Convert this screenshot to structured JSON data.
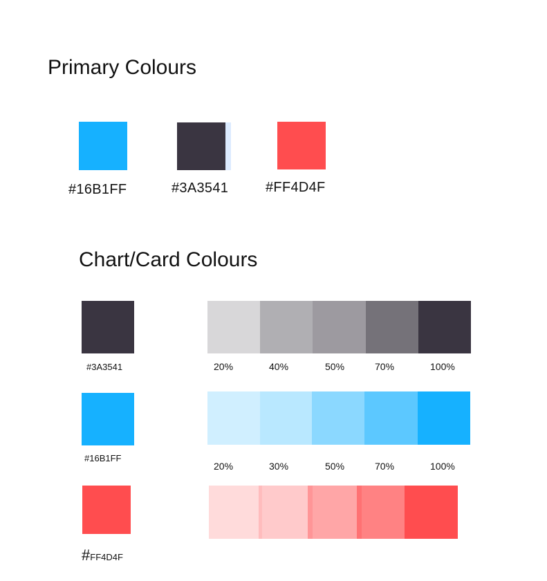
{
  "primary": {
    "title": "Primary Colours",
    "swatches": [
      {
        "hex": "#16B1FF",
        "color": "#16B1FF"
      },
      {
        "hex": "#3A3541",
        "color": "#3A3541"
      },
      {
        "hex": "#FF4D4F",
        "color": "#FF4D4F"
      }
    ]
  },
  "chart": {
    "title": "Chart/Card Colours",
    "rows": [
      {
        "hex": "#3A3541",
        "color": "#3A3541",
        "ramp_colors": [
          "#D8D7D9",
          "#B0AFB3",
          "#9D9AA0",
          "#757279",
          "#3A3541"
        ],
        "labels": [
          "20%",
          "40%",
          "50%",
          "70%",
          "100%"
        ]
      },
      {
        "hex": "#16B1FF",
        "color": "#16B1FF",
        "ramp_colors": [
          "#D0EFFF",
          "#B9E8FF",
          "#8BD8FF",
          "#5CC8FF",
          "#16B1FF"
        ],
        "labels": [
          "20%",
          "30%",
          "50%",
          "70%",
          "100%"
        ]
      },
      {
        "hash": "#",
        "hex_rest": "FF4D4F",
        "color": "#FF4D4F",
        "ramp_colors": [
          "#FFDBDB",
          "#FFCACB",
          "#FFA6A7",
          "#FF8283",
          "#FF4D4F"
        ]
      }
    ]
  }
}
